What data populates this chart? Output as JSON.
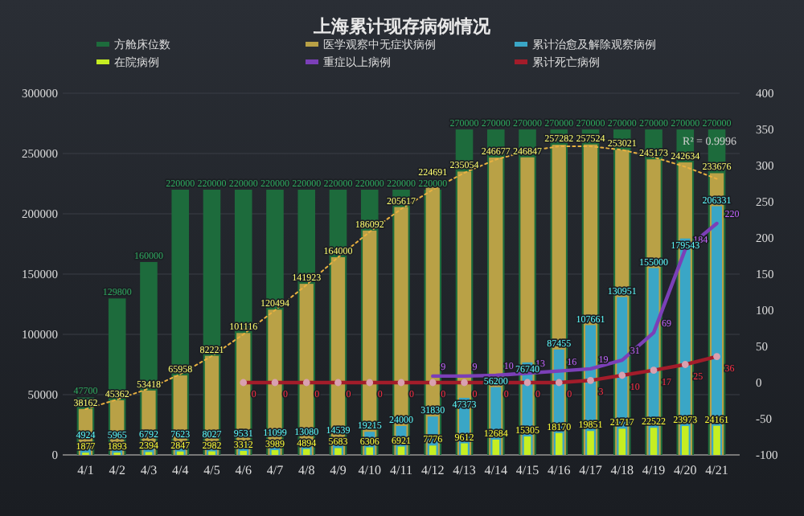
{
  "chart_data": {
    "type": "bar",
    "title": "上海累计现存病例情况",
    "categories": [
      "4/1",
      "4/2",
      "4/3",
      "4/4",
      "4/5",
      "4/6",
      "4/7",
      "4/8",
      "4/9",
      "4/10",
      "4/11",
      "4/12",
      "4/13",
      "4/14",
      "4/15",
      "4/16",
      "4/17",
      "4/18",
      "4/19",
      "4/20",
      "4/21"
    ],
    "series": [
      {
        "name": "方舱床位数",
        "color": "#1d6b3c",
        "values": [
          47700,
          129800,
          160000,
          220000,
          220000,
          220000,
          220000,
          220000,
          220000,
          220000,
          220000,
          220000,
          270000,
          270000,
          270000,
          270000,
          270000,
          270000,
          270000,
          270000,
          270000
        ]
      },
      {
        "name": "医学观察中无症状病例",
        "color": "#b9a146",
        "values": [
          38162,
          45362,
          53418,
          65958,
          82221,
          101116,
          120494,
          141923,
          164000,
          186092,
          205617,
          224691,
          235054,
          246677,
          246847,
          257282,
          257524,
          253021,
          245173,
          242634,
          233676
        ]
      },
      {
        "name": "累计治愈及解除观察病例",
        "color": "#3aa6c6",
        "values": [
          4924,
          5965,
          6792,
          7623,
          8027,
          9531,
          11099,
          13080,
          14539,
          19215,
          24000,
          31830,
          47373,
          56200,
          76740,
          87455,
          107661,
          130951,
          155000,
          179543,
          206331
        ]
      },
      {
        "name": "在院病例",
        "color": "#c6ee22",
        "values": [
          1877,
          1893,
          2394,
          2847,
          2982,
          3312,
          3989,
          4894,
          5683,
          6306,
          6921,
          7776,
          9612,
          12684,
          15305,
          18170,
          19851,
          21717,
          22522,
          23973,
          24161
        ]
      },
      {
        "type": "line",
        "color": "#e8b040",
        "line_style": "dotted",
        "values": [
          38000,
          46000,
          55000,
          67000,
          82000,
          100000,
          120000,
          141000,
          164000,
          185000,
          204000,
          220000,
          234000,
          245000,
          252000,
          256000,
          256000,
          253000,
          247000,
          239000,
          229000
        ],
        "value_labels": [
          null,
          null,
          null,
          null,
          null,
          null,
          null,
          null,
          null,
          null,
          null,
          null,
          null,
          null,
          null,
          null,
          null,
          null,
          null,
          null,
          null
        ]
      },
      {
        "name": "重症以上病例",
        "type": "line",
        "axis": "y2",
        "color": "#7b3fb8",
        "values": [
          null,
          null,
          null,
          null,
          null,
          null,
          null,
          null,
          null,
          null,
          null,
          9,
          9,
          10,
          13,
          16,
          19,
          31,
          69,
          184,
          220
        ]
      },
      {
        "name": "累计死亡病例",
        "type": "line",
        "axis": "y2",
        "color": "#a31c2a",
        "marker": "circle",
        "values": [
          null,
          null,
          null,
          null,
          null,
          0,
          0,
          0,
          0,
          0,
          0,
          0,
          0,
          0,
          0,
          0,
          3,
          10,
          17,
          25,
          36
        ]
      }
    ],
    "ylim": [
      0,
      300000
    ],
    "yticks": [
      0,
      50000,
      100000,
      150000,
      200000,
      250000,
      300000
    ],
    "y2lim": [
      -100,
      400
    ],
    "y2ticks": [
      -100,
      -50,
      0,
      50,
      100,
      150,
      200,
      250,
      300,
      350,
      400
    ],
    "grid": "y",
    "legend": "top",
    "data_labels": true,
    "annotations": [
      "R² = 0.9996"
    ]
  }
}
